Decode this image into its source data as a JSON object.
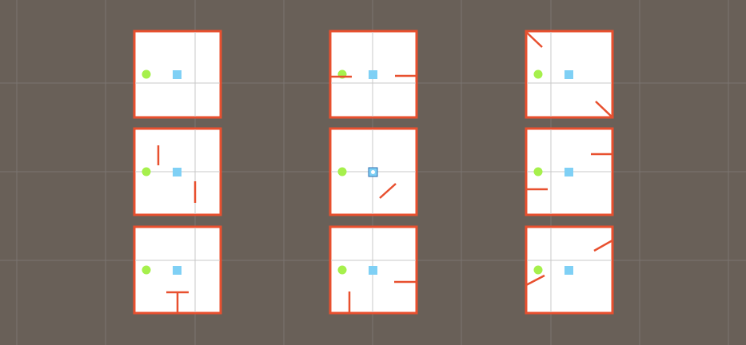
{
  "scene": {
    "background_color": "#696058",
    "grid_color": "#7a7470",
    "panel_fill": "#ffffff",
    "panel_border_color": "#e8502f",
    "panel_inner_grid_color": "#c8c8c8",
    "wall_color": "#e8502f",
    "agent_color": "#a6f04c",
    "agent_icon": "green-circle-agent",
    "goal_color": "#7fd0f5",
    "goal_icon": "blue-square-goal",
    "selected_goal_outline": "#2f6fb0",
    "panel_count": 9
  }
}
